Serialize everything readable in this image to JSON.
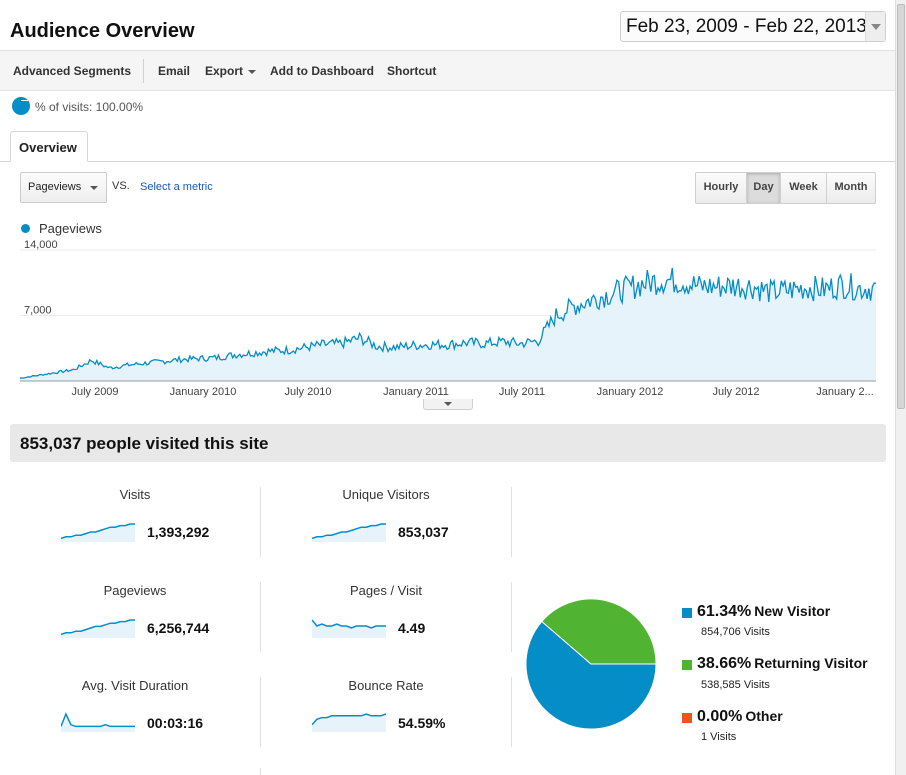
{
  "header": {
    "title": "Audience Overview",
    "date_start": "Feb 23, 2009",
    "date_sep": " - ",
    "date_end": "Feb 22, 2013"
  },
  "toolbar": {
    "advanced_segments": "Advanced Segments",
    "email": "Email",
    "export": "Export",
    "add_to_dashboard": "Add to Dashboard",
    "shortcut": "Shortcut"
  },
  "segment": {
    "label": "% of visits: 100.00%"
  },
  "tabs": {
    "overview": "Overview"
  },
  "controls": {
    "metric": "Pageviews",
    "vs": "VS.",
    "select_metric": "Select a metric",
    "time_buttons": [
      "Hourly",
      "Day",
      "Week",
      "Month"
    ],
    "active_time": "Day"
  },
  "chart_data": {
    "type": "area",
    "series": [
      {
        "name": "Pageviews",
        "x": [
          "2009-03",
          "2009-04",
          "2009-05",
          "2009-06",
          "2009-07",
          "2009-08",
          "2009-09",
          "2009-10",
          "2009-11",
          "2009-12",
          "2010-01",
          "2010-02",
          "2010-03",
          "2010-04",
          "2010-05",
          "2010-06",
          "2010-07",
          "2010-08",
          "2010-09",
          "2010-10",
          "2010-11",
          "2010-12",
          "2011-01",
          "2011-02",
          "2011-03",
          "2011-04",
          "2011-05",
          "2011-06",
          "2011-07",
          "2011-08",
          "2011-09",
          "2011-10",
          "2011-11",
          "2011-12",
          "2012-01",
          "2012-02",
          "2012-03",
          "2012-04",
          "2012-05",
          "2012-06",
          "2012-07",
          "2012-08",
          "2012-09",
          "2012-10",
          "2012-11",
          "2012-12",
          "2013-01",
          "2013-02"
        ],
        "values": [
          300,
          600,
          900,
          1200,
          2200,
          1400,
          1700,
          1900,
          2100,
          2300,
          2400,
          2500,
          2800,
          3000,
          3200,
          3300,
          3600,
          3900,
          4000,
          4600,
          3700,
          3600,
          3800,
          3900,
          3900,
          4100,
          4000,
          4200,
          4000,
          4300,
          7000,
          8000,
          8700,
          9300,
          9900,
          10500,
          10800,
          10700,
          10100,
          10100,
          10200,
          10100,
          9500,
          9700,
          10000,
          9800,
          10300,
          9900
        ]
      }
    ],
    "x_ticks": [
      "July 2009",
      "January 2010",
      "July 2010",
      "January 2011",
      "July 2011",
      "January 2012",
      "July 2012",
      "January 2..."
    ],
    "y_ticks": [
      "14,000",
      "7,000"
    ],
    "ylim": [
      0,
      14000
    ],
    "grid": true,
    "colors": {
      "line": "#058dc7",
      "fill": "#e6f3fb"
    }
  },
  "summary": {
    "text": "853,037 people visited this site"
  },
  "metrics": [
    {
      "label": "Visits",
      "value": "1,393,292",
      "trend": [
        1,
        2,
        2,
        3,
        3,
        4,
        5,
        5,
        6,
        7,
        8,
        8,
        9,
        9,
        10,
        10
      ]
    },
    {
      "label": "Unique Visitors",
      "value": "853,037",
      "trend": [
        1,
        2,
        2,
        3,
        3,
        4,
        5,
        5,
        6,
        7,
        8,
        8,
        9,
        9,
        10,
        10
      ]
    },
    {
      "label": "Pageviews",
      "value": "6,256,744",
      "trend": [
        1,
        2,
        2,
        3,
        3,
        4,
        5,
        6,
        6,
        7,
        8,
        8,
        9,
        9,
        10,
        10
      ]
    },
    {
      "label": "Pages / Visit",
      "value": "4.49",
      "trend": [
        8,
        5,
        6,
        5,
        5,
        6,
        5,
        5,
        4,
        5,
        5,
        5,
        4,
        5,
        5,
        5
      ]
    },
    {
      "label": "Avg. Visit Duration",
      "value": "00:03:16",
      "trend": [
        2,
        9,
        3,
        2,
        2,
        2,
        2,
        2,
        2,
        3,
        2,
        2,
        2,
        2,
        2,
        2
      ]
    },
    {
      "label": "Bounce Rate",
      "value": "54.59%",
      "trend": [
        3,
        6,
        7,
        7,
        8,
        8,
        8,
        8,
        8,
        8,
        8,
        9,
        8,
        8,
        8,
        9
      ]
    }
  ],
  "visitor_split": {
    "slices": [
      {
        "pct_value": 61.34,
        "pct": "61.34%",
        "name": "New Visitor",
        "visits": "854,706 Visits",
        "color": "#058dc7"
      },
      {
        "pct_value": 38.66,
        "pct": "38.66%",
        "name": "Returning Visitor",
        "visits": "538,585 Visits",
        "color": "#50b432"
      },
      {
        "pct_value": 0.0,
        "pct": "0.00%",
        "name": "Other",
        "visits": "1 Visits",
        "color": "#ed561b"
      }
    ]
  }
}
